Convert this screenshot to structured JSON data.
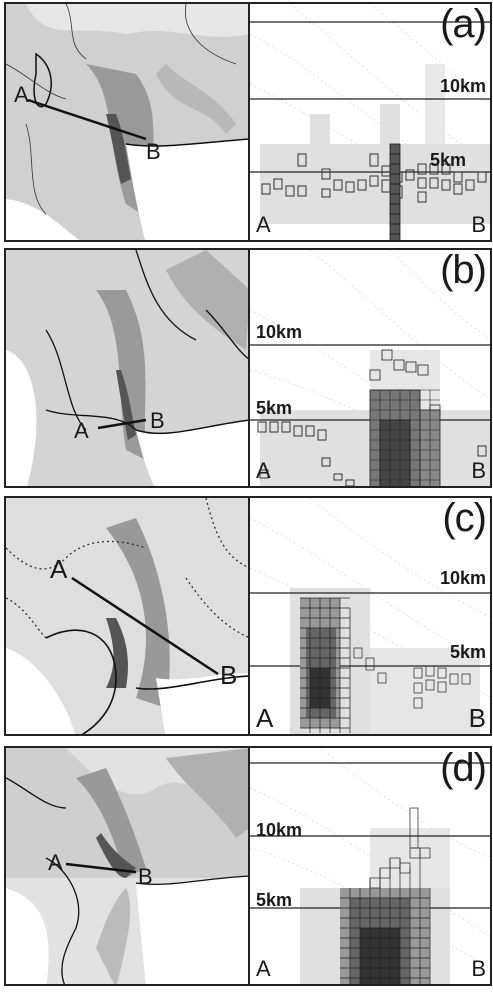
{
  "panels": [
    {
      "label": "(a)",
      "alt_high": "10km",
      "alt_low": "5km",
      "point_a": "A",
      "point_b": "B",
      "xs_a": "A",
      "xs_b": "B"
    },
    {
      "label": "(b)",
      "alt_high": "10km",
      "alt_low": "5km",
      "point_a": "A",
      "point_b": "B",
      "xs_a": "A",
      "xs_b": "B"
    },
    {
      "label": "(c)",
      "alt_high": "10km",
      "alt_low": "5km",
      "point_a": "A",
      "point_b": "B",
      "xs_a": "A",
      "xs_b": "B"
    },
    {
      "label": "(d)",
      "alt_high": "10km",
      "alt_low": "5km",
      "point_a": "A",
      "point_b": "B",
      "xs_a": "A",
      "xs_b": "B"
    }
  ],
  "colors": {
    "border": "#222222",
    "radar_light": "#d9d9d9",
    "radar_mid": "#a8a8a8",
    "radar_dark": "#555555",
    "coast": "#111111"
  }
}
